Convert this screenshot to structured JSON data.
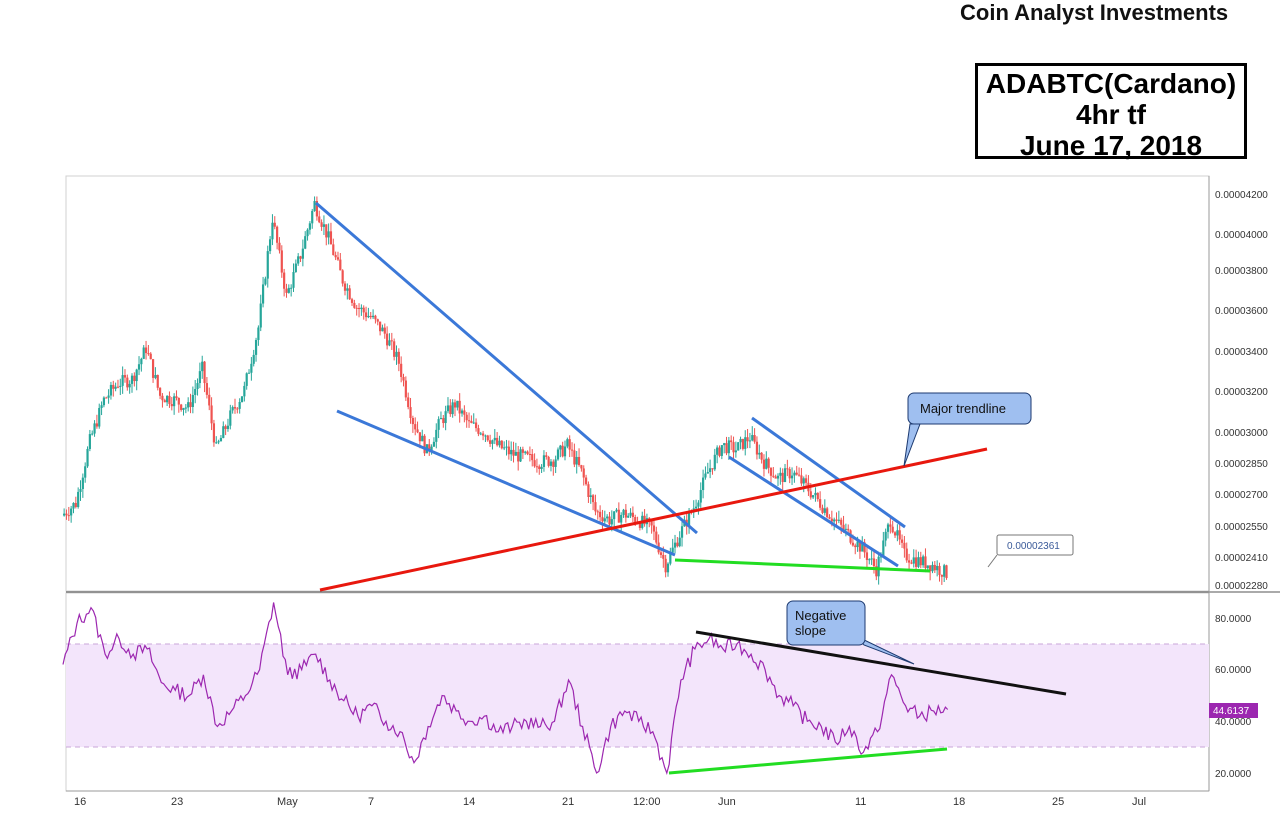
{
  "header": {
    "site_title": "Coin Analyst Investments",
    "title_lines": [
      "ADABTC(Cardano)",
      "4hr tf",
      "June 17, 2018"
    ]
  },
  "chart_data": [
    {
      "type": "candlestick",
      "name": "ADABTC price",
      "y_ticks": [
        "0.00004200",
        "0.00004000",
        "0.00003800",
        "0.00003600",
        "0.00003400",
        "0.00003200",
        "0.00003000",
        "0.00002850",
        "0.00002700",
        "0.00002550",
        "0.00002410",
        "0.00002280"
      ],
      "x_ticks": [
        "16",
        "23",
        "May",
        "7",
        "14",
        "21",
        "12:00",
        "Jun",
        "11",
        "18",
        "25",
        "Jul"
      ],
      "ylim": [
        2.28e-05,
        4.26e-05
      ],
      "x_dates": [
        "2018-04-16",
        "2018-04-23",
        "2018-05-01",
        "2018-05-07",
        "2018-05-14",
        "2018-05-21",
        "2018-05-28",
        "2018-06-01",
        "2018-06-11",
        "2018-06-18",
        "2018-06-25",
        "2018-07-01"
      ],
      "close_path": [
        [
          "2018-04-15",
          2.64e-05
        ],
        [
          "2018-04-16",
          2.7e-05
        ],
        [
          "2018-04-17",
          3e-05
        ],
        [
          "2018-04-18",
          3.2e-05
        ],
        [
          "2018-04-19",
          3.28e-05
        ],
        [
          "2018-04-20",
          3.3e-05
        ],
        [
          "2018-04-21",
          3.45e-05
        ],
        [
          "2018-04-22",
          3.22e-05
        ],
        [
          "2018-04-23",
          3.2e-05
        ],
        [
          "2018-04-24",
          3.16e-05
        ],
        [
          "2018-04-25",
          3.35e-05
        ],
        [
          "2018-04-26",
          2.96e-05
        ],
        [
          "2018-04-27",
          3.12e-05
        ],
        [
          "2018-04-28",
          3.25e-05
        ],
        [
          "2018-04-29",
          3.55e-05
        ],
        [
          "2018-04-30",
          4.08e-05
        ],
        [
          "2018-05-01",
          3.7e-05
        ],
        [
          "2018-05-02",
          3.9e-05
        ],
        [
          "2018-05-03",
          4.15e-05
        ],
        [
          "2018-05-04",
          3.98e-05
        ],
        [
          "2018-05-05",
          3.78e-05
        ],
        [
          "2018-05-06",
          3.65e-05
        ],
        [
          "2018-05-07",
          3.6e-05
        ],
        [
          "2018-05-08",
          3.52e-05
        ],
        [
          "2018-05-09",
          3.38e-05
        ],
        [
          "2018-05-10",
          3.1e-05
        ],
        [
          "2018-05-11",
          2.95e-05
        ],
        [
          "2018-05-12",
          3.1e-05
        ],
        [
          "2018-05-13",
          3.18e-05
        ],
        [
          "2018-05-14",
          3.08e-05
        ],
        [
          "2018-05-15",
          3.05e-05
        ],
        [
          "2018-05-16",
          2.98e-05
        ],
        [
          "2018-05-17",
          2.94e-05
        ],
        [
          "2018-05-18",
          2.92e-05
        ],
        [
          "2018-05-19",
          2.9e-05
        ],
        [
          "2018-05-20",
          2.91e-05
        ],
        [
          "2018-05-21",
          2.98e-05
        ],
        [
          "2018-05-22",
          2.85e-05
        ],
        [
          "2018-05-23",
          2.66e-05
        ],
        [
          "2018-05-24",
          2.62e-05
        ],
        [
          "2018-05-25",
          2.65e-05
        ],
        [
          "2018-05-26",
          2.62e-05
        ],
        [
          "2018-05-27",
          2.58e-05
        ],
        [
          "2018-05-28",
          2.4e-05
        ],
        [
          "2018-05-29",
          2.55e-05
        ],
        [
          "2018-05-30",
          2.68e-05
        ],
        [
          "2018-05-31",
          2.85e-05
        ],
        [
          "2018-06-01",
          2.98e-05
        ],
        [
          "2018-06-02",
          2.96e-05
        ],
        [
          "2018-06-03",
          3.02e-05
        ],
        [
          "2018-06-04",
          2.9e-05
        ],
        [
          "2018-06-05",
          2.82e-05
        ],
        [
          "2018-06-06",
          2.85e-05
        ],
        [
          "2018-06-07",
          2.78e-05
        ],
        [
          "2018-06-08",
          2.7e-05
        ],
        [
          "2018-06-09",
          2.62e-05
        ],
        [
          "2018-06-10",
          2.55e-05
        ],
        [
          "2018-06-11",
          2.48e-05
        ],
        [
          "2018-06-12",
          2.38e-05
        ],
        [
          "2018-06-13",
          2.62e-05
        ],
        [
          "2018-06-14",
          2.45e-05
        ],
        [
          "2018-06-15",
          2.42e-05
        ],
        [
          "2018-06-16",
          2.4e-05
        ],
        [
          "2018-06-17",
          2.36e-05
        ]
      ],
      "last_price_label": "0.00002361",
      "annotations": {
        "callout_major": "Major trendline"
      }
    },
    {
      "type": "line",
      "name": "RSI",
      "y_ticks": [
        "80.0000",
        "60.0000",
        "40.0000",
        "20.0000"
      ],
      "ylim": [
        14,
        90
      ],
      "band": [
        30,
        70
      ],
      "last_value_label": "44.6137",
      "annotations": {
        "callout_negative": [
          "Negative",
          "slope"
        ]
      },
      "values": [
        [
          "2018-04-15",
          62
        ],
        [
          "2018-04-16",
          78
        ],
        [
          "2018-04-17",
          84
        ],
        [
          "2018-04-18",
          66
        ],
        [
          "2018-04-19",
          72
        ],
        [
          "2018-04-20",
          66
        ],
        [
          "2018-04-21",
          68
        ],
        [
          "2018-04-22",
          55
        ],
        [
          "2018-04-23",
          52
        ],
        [
          "2018-04-24",
          50
        ],
        [
          "2018-04-25",
          58
        ],
        [
          "2018-04-26",
          38
        ],
        [
          "2018-04-27",
          44
        ],
        [
          "2018-04-28",
          50
        ],
        [
          "2018-04-29",
          60
        ],
        [
          "2018-04-30",
          86
        ],
        [
          "2018-05-01",
          58
        ],
        [
          "2018-05-02",
          60
        ],
        [
          "2018-05-03",
          66
        ],
        [
          "2018-05-04",
          56
        ],
        [
          "2018-05-05",
          48
        ],
        [
          "2018-05-06",
          42
        ],
        [
          "2018-05-07",
          46
        ],
        [
          "2018-05-08",
          40
        ],
        [
          "2018-05-09",
          36
        ],
        [
          "2018-05-10",
          24
        ],
        [
          "2018-05-11",
          38
        ],
        [
          "2018-05-12",
          50
        ],
        [
          "2018-05-13",
          44
        ],
        [
          "2018-05-14",
          40
        ],
        [
          "2018-05-15",
          42
        ],
        [
          "2018-05-16",
          36
        ],
        [
          "2018-05-17",
          38
        ],
        [
          "2018-05-18",
          40
        ],
        [
          "2018-05-19",
          38
        ],
        [
          "2018-05-20",
          40
        ],
        [
          "2018-05-21",
          56
        ],
        [
          "2018-05-22",
          38
        ],
        [
          "2018-05-23",
          20
        ],
        [
          "2018-05-24",
          38
        ],
        [
          "2018-05-25",
          44
        ],
        [
          "2018-05-26",
          40
        ],
        [
          "2018-05-27",
          36
        ],
        [
          "2018-05-28",
          20
        ],
        [
          "2018-05-29",
          56
        ],
        [
          "2018-05-30",
          68
        ],
        [
          "2018-05-31",
          72
        ],
        [
          "2018-06-01",
          68
        ],
        [
          "2018-06-02",
          70
        ],
        [
          "2018-06-03",
          66
        ],
        [
          "2018-06-04",
          60
        ],
        [
          "2018-06-05",
          50
        ],
        [
          "2018-06-06",
          46
        ],
        [
          "2018-06-07",
          40
        ],
        [
          "2018-06-08",
          38
        ],
        [
          "2018-06-09",
          32
        ],
        [
          "2018-06-10",
          38
        ],
        [
          "2018-06-11",
          28
        ],
        [
          "2018-06-12",
          36
        ],
        [
          "2018-06-13",
          58
        ],
        [
          "2018-06-14",
          46
        ],
        [
          "2018-06-15",
          42
        ],
        [
          "2018-06-16",
          44
        ],
        [
          "2018-06-17",
          44.6
        ]
      ]
    }
  ],
  "colors": {
    "up_candle": "#26a69a",
    "down_candle": "#ef5350",
    "wedge_lines": "#3b78d8",
    "major_trendline": "#e8180e",
    "support_lines": "#22dd22",
    "rsi_line": "#9c27b0",
    "rsi_band": "#f3e5fb",
    "callout_fill": "#9fbff0",
    "rsi_label_bg": "#9c27b0"
  }
}
